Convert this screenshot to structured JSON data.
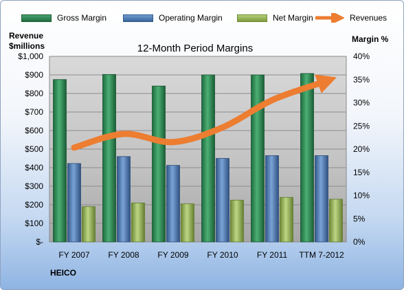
{
  "chart_data": {
    "type": "bar",
    "title": "12-Month Period Margins",
    "categories": [
      "FY 2007",
      "FY 2008",
      "FY 2009",
      "FY 2010",
      "FY 2011",
      "TTM 7-2012"
    ],
    "series": [
      {
        "name": "Gross Margin",
        "axis": "right",
        "color": "#2e8b57",
        "values": [
          35.0,
          36.1,
          33.6,
          36.0,
          36.0,
          36.3
        ]
      },
      {
        "name": "Operating Margin",
        "axis": "right",
        "color": "#4f81bd",
        "values": [
          16.9,
          18.4,
          16.5,
          18.0,
          18.6,
          18.6
        ]
      },
      {
        "name": "Net Margin",
        "axis": "right",
        "color": "#9bbb59",
        "values": [
          7.6,
          8.4,
          8.2,
          9.0,
          9.6,
          9.2
        ]
      },
      {
        "name": "Revenues",
        "axis": "left",
        "type": "line",
        "color": "#ed7d31",
        "values": [
          508,
          582,
          538,
          617,
          764,
          858
        ]
      }
    ],
    "left_axis": {
      "label_line1": "Revenue",
      "label_line2": "$millions",
      "ylim": [
        0,
        1000
      ],
      "tick_values": [
        0,
        100,
        200,
        300,
        400,
        500,
        600,
        700,
        800,
        900,
        1000
      ],
      "tick_labels": [
        "$-",
        "$100",
        "$200",
        "$300",
        "$400",
        "$500",
        "$600",
        "$700",
        "$800",
        "$900",
        "$1,000"
      ]
    },
    "right_axis": {
      "label": "Margin %",
      "ylim": [
        0,
        40
      ],
      "tick_values": [
        0,
        5,
        10,
        15,
        20,
        25,
        30,
        35,
        40
      ],
      "tick_labels": [
        "0%",
        "5%",
        "10%",
        "15%",
        "20%",
        "25%",
        "30%",
        "35%",
        "40%"
      ]
    },
    "grid": true,
    "legend_position": "top"
  },
  "footer": {
    "company": "HEICO"
  }
}
